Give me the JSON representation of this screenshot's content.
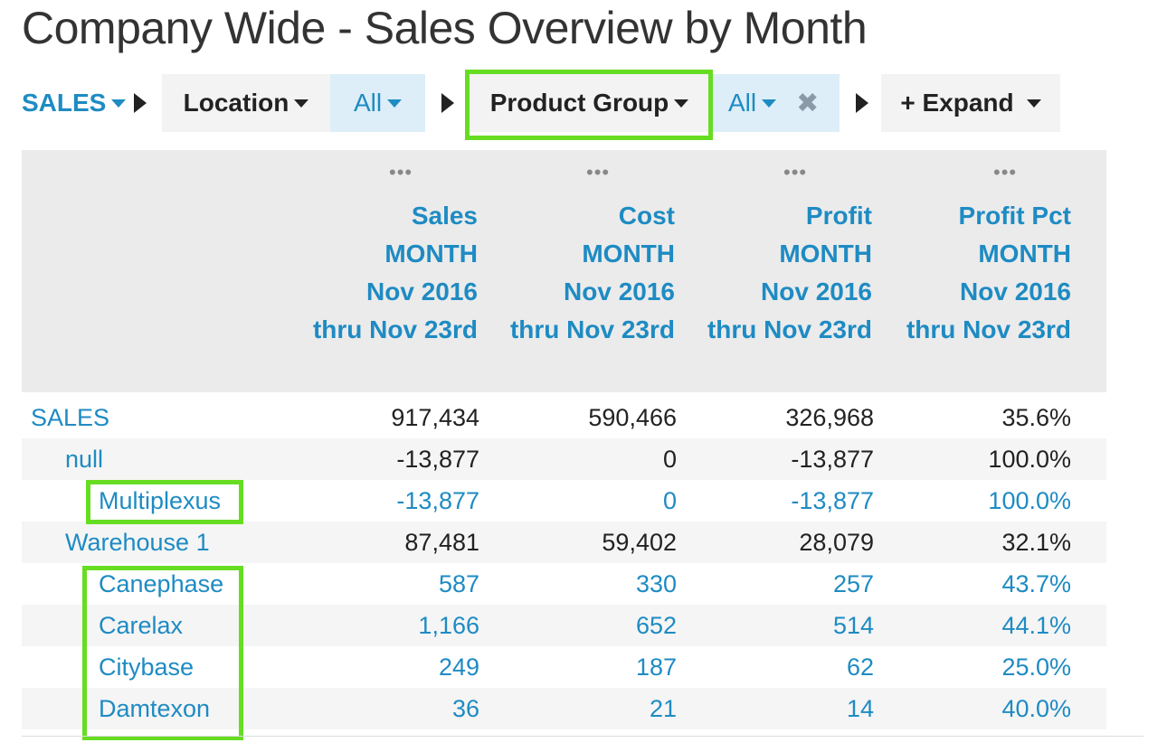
{
  "page": {
    "title": "Company Wide - Sales Overview by Month"
  },
  "toolbar": {
    "sales_label": "SALES",
    "location_label": "Location",
    "location_filter": "All",
    "product_group_label": "Product Group",
    "product_group_filter": "All",
    "remove_glyph": "✖",
    "expand_label": "+ Expand"
  },
  "table": {
    "dots": "•••",
    "columns": [
      {
        "line1": "Sales",
        "line2": "MONTH",
        "line3": "Nov 2016",
        "line4": "thru Nov 23rd"
      },
      {
        "line1": "Cost",
        "line2": "MONTH",
        "line3": "Nov 2016",
        "line4": "thru Nov 23rd"
      },
      {
        "line1": "Profit",
        "line2": "MONTH",
        "line3": "Nov 2016",
        "line4": "thru Nov 23rd"
      },
      {
        "line1": "Profit Pct",
        "line2": "MONTH",
        "line3": "Nov 2016",
        "line4": "thru Nov 23rd"
      }
    ],
    "rows": [
      {
        "label": "SALES",
        "sales": "917,434",
        "cost": "590,466",
        "profit": "326,968",
        "pct": "35.6%"
      },
      {
        "label": "null",
        "sales": "-13,877",
        "cost": "0",
        "profit": "-13,877",
        "pct": "100.0%"
      },
      {
        "label": "Multiplexus",
        "sales": "-13,877",
        "cost": "0",
        "profit": "-13,877",
        "pct": "100.0%"
      },
      {
        "label": "Warehouse 1",
        "sales": "87,481",
        "cost": "59,402",
        "profit": "28,079",
        "pct": "32.1%"
      },
      {
        "label": "Canephase",
        "sales": "587",
        "cost": "330",
        "profit": "257",
        "pct": "43.7%"
      },
      {
        "label": "Carelax",
        "sales": "1,166",
        "cost": "652",
        "profit": "514",
        "pct": "44.1%"
      },
      {
        "label": "Citybase",
        "sales": "249",
        "cost": "187",
        "profit": "62",
        "pct": "25.0%"
      },
      {
        "label": "Damtexon",
        "sales": "36",
        "cost": "21",
        "profit": "14",
        "pct": "40.0%"
      }
    ]
  },
  "colors": {
    "link_blue": "#1e8bc3",
    "highlight_green": "#66dd22",
    "header_bg": "#ebebeb"
  }
}
